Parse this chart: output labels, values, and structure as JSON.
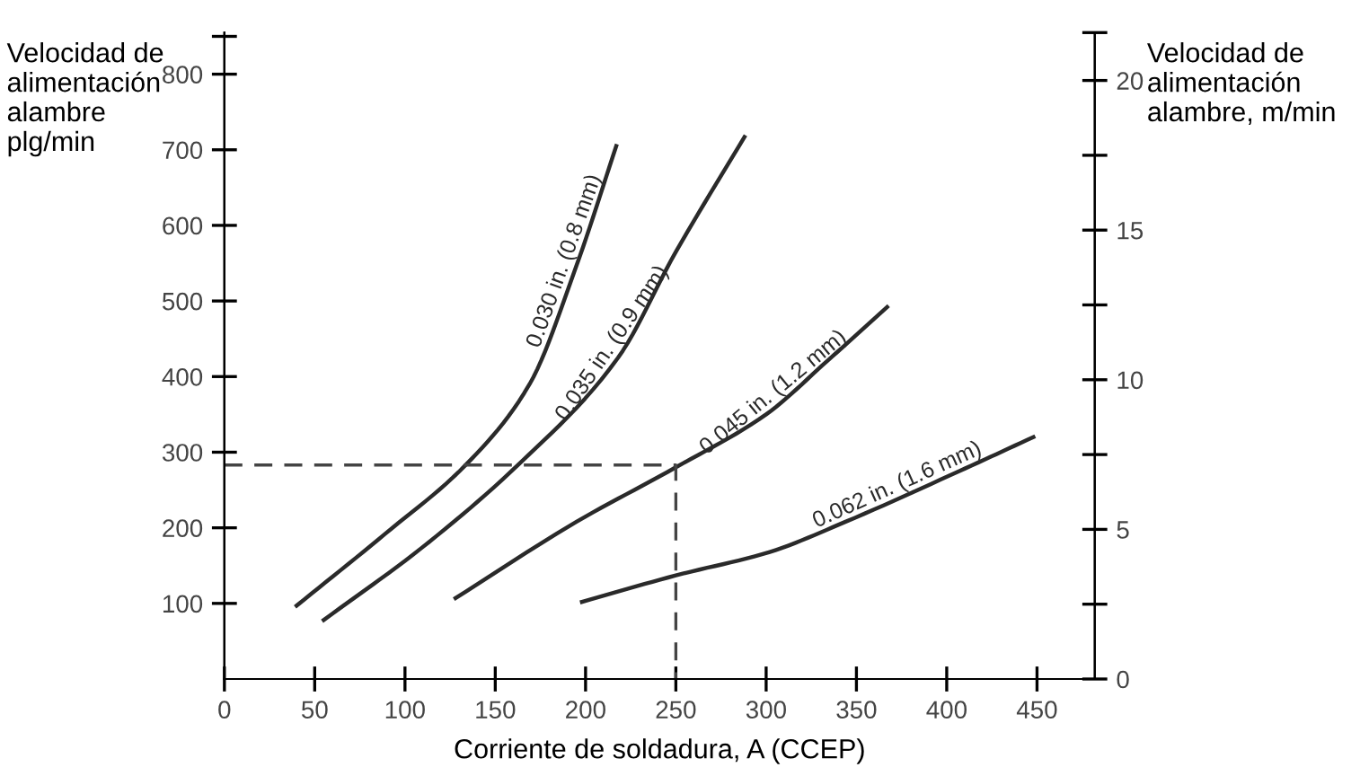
{
  "chart_data": {
    "type": "line",
    "xlabel": "Corriente de soldadura, A (CCEP)",
    "ylabel": "Velocidad de\nalimentación\nalambre\nplg/min",
    "y2label": "Velocidad de\nalimentación\nalambre, m/min",
    "xlim": [
      0,
      482
    ],
    "ylim": [
      0,
      855
    ],
    "y2lim": [
      0,
      21.6
    ],
    "xticks": [
      0,
      50,
      100,
      150,
      200,
      250,
      300,
      350,
      400,
      450
    ],
    "yticks": [
      100,
      200,
      300,
      400,
      500,
      600,
      700,
      800,
      {
        "value": 850,
        "label": null
      }
    ],
    "y2ticks": [
      0,
      {
        "value": 2.5,
        "label": null
      },
      5,
      {
        "value": 7.5,
        "label": null
      },
      10,
      {
        "value": 12.5,
        "label": null
      },
      15,
      {
        "value": 17.5,
        "label": null
      },
      20,
      {
        "value": 21.6,
        "label": null
      }
    ],
    "grid": false,
    "legend": false,
    "marker": "none",
    "series": [
      {
        "name": "0.030 in. (0.8 mm)",
        "color": "#2a2a2a",
        "x": [
          40,
          89,
          134,
          169,
          195,
          217
        ],
        "values": [
          97,
          192,
          284,
          390,
          547,
          705
        ]
      },
      {
        "name": "0.035 in. (0.9 mm)",
        "color": "#2a2a2a",
        "x": [
          55,
          109,
          163,
          218,
          250,
          288
        ],
        "values": [
          78,
          173,
          284,
          425,
          565,
          717
        ]
      },
      {
        "name": "0.045 in. (1.2 mm)",
        "color": "#2a2a2a",
        "x": [
          128,
          195,
          250,
          300,
          334,
          367
        ],
        "values": [
          107,
          208,
          280,
          350,
          421,
          492
        ]
      },
      {
        "name": "0.062 in. (1.6 mm)",
        "color": "#2a2a2a",
        "x": [
          198,
          250,
          302,
          344,
          407,
          448
        ],
        "values": [
          102,
          137,
          168,
          208,
          275,
          320
        ]
      },
      {
        "color": "#444444",
        "line_style": "dashed",
        "x": [
          0,
          250,
          250
        ],
        "values": [
          283,
          283,
          0
        ]
      }
    ]
  }
}
